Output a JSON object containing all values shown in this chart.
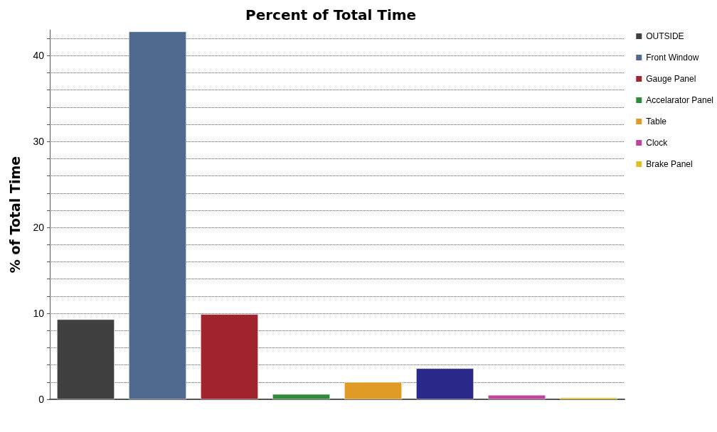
{
  "chart_data": {
    "type": "bar",
    "title": "Percent of Total Time",
    "ylabel": "% of Total Time",
    "stacked": true,
    "categories": [
      null,
      null,
      null,
      null,
      null,
      null,
      null,
      null
    ],
    "series": [
      {
        "name": "OUTSIDE",
        "color": "#404040",
        "values": [
          9.3,
          null,
          null,
          null,
          null,
          null,
          null,
          null
        ]
      },
      {
        "name": "Front Window",
        "color": "#4f6a8f",
        "values": [
          null,
          42.8,
          null,
          null,
          null,
          null,
          null,
          null
        ]
      },
      {
        "name": "Gauge Panel",
        "color": "#a0242e",
        "values": [
          null,
          null,
          9.9,
          null,
          null,
          null,
          null,
          null
        ]
      },
      {
        "name": "Accelarator Panel",
        "color": "#2e8b3a",
        "values": [
          null,
          null,
          null,
          0.6,
          null,
          null,
          null,
          null
        ]
      },
      {
        "name": "Table",
        "color": "#e09a26",
        "values": [
          null,
          null,
          null,
          null,
          2.0,
          null,
          null,
          null
        ]
      },
      {
        "color": "#2a2a8a",
        "values": [
          null,
          null,
          null,
          null,
          null,
          3.6,
          null,
          null
        ]
      },
      {
        "name": "Clock",
        "color": "#c0429a",
        "values": [
          null,
          null,
          null,
          null,
          null,
          null,
          0.5,
          null
        ]
      },
      {
        "name": "Brake Panel",
        "color": "#e0c020",
        "values": [
          null,
          null,
          null,
          null,
          null,
          null,
          null,
          0.2
        ]
      }
    ],
    "ylim": [
      0,
      43
    ],
    "yticks": [
      0,
      {
        "value": 2,
        "label": null
      },
      {
        "value": 4,
        "label": null
      },
      {
        "value": 6,
        "label": null
      },
      {
        "value": 8,
        "label": null
      },
      10,
      {
        "value": 12,
        "label": null
      },
      {
        "value": 14,
        "label": null
      },
      {
        "value": 16,
        "label": null
      },
      {
        "value": 18,
        "label": null
      },
      20,
      {
        "value": 22,
        "label": null
      },
      {
        "value": 24,
        "label": null
      },
      {
        "value": 26,
        "label": null
      },
      {
        "value": 28,
        "label": null
      },
      30,
      {
        "value": 32,
        "label": null
      },
      {
        "value": 34,
        "label": null
      },
      {
        "value": 36,
        "label": null
      },
      {
        "value": 38,
        "label": null
      },
      40,
      {
        "value": 42,
        "label": null
      }
    ],
    "grid": true,
    "legend": "right"
  }
}
